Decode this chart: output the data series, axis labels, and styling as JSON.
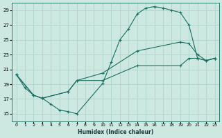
{
  "xlabel": "Humidex (Indice chaleur)",
  "xlim": [
    -0.5,
    23.5
  ],
  "ylim": [
    14.0,
    30.0
  ],
  "yticks": [
    15,
    17,
    19,
    21,
    23,
    25,
    27,
    29
  ],
  "xticks": [
    0,
    1,
    2,
    3,
    4,
    5,
    6,
    7,
    8,
    9,
    10,
    11,
    12,
    13,
    14,
    15,
    16,
    17,
    18,
    19,
    20,
    21,
    22,
    23
  ],
  "bg_color": "#cce8e0",
  "grid_color": "#afd4cc",
  "line_color": "#1a6e62",
  "curve1_x": [
    0,
    1,
    2,
    3,
    4,
    5,
    6,
    7,
    10,
    11,
    12,
    13,
    14,
    15,
    16,
    17,
    18,
    19,
    20,
    21,
    22,
    23
  ],
  "curve1_y": [
    20.3,
    18.5,
    17.5,
    17.1,
    16.3,
    15.5,
    15.3,
    15.0,
    19.1,
    22.0,
    25.0,
    26.5,
    28.5,
    29.3,
    29.5,
    29.3,
    29.0,
    28.7,
    27.0,
    22.5,
    22.2,
    22.5
  ],
  "curve2_x": [
    0,
    2,
    3,
    6,
    7,
    10,
    14,
    19,
    20,
    21,
    22,
    23
  ],
  "curve2_y": [
    20.3,
    17.5,
    17.1,
    18.0,
    19.5,
    20.5,
    23.5,
    24.7,
    24.5,
    23.0,
    22.2,
    22.5
  ],
  "curve3_x": [
    0,
    2,
    3,
    6,
    7,
    10,
    14,
    19,
    20,
    21,
    22,
    23
  ],
  "curve3_y": [
    20.3,
    17.5,
    17.1,
    18.0,
    19.5,
    19.5,
    21.5,
    21.5,
    22.5,
    22.5,
    22.2,
    22.5
  ]
}
